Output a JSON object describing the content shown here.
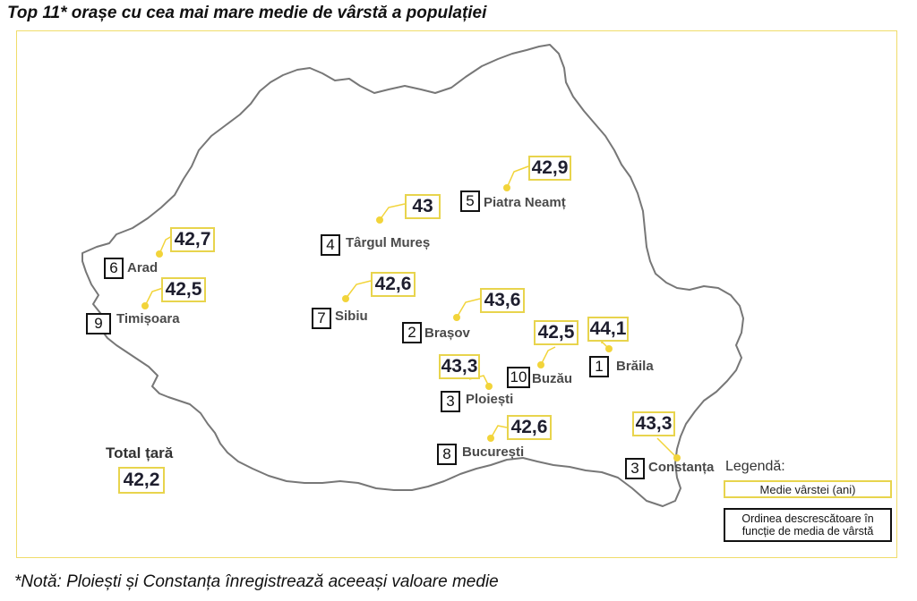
{
  "title": "Top 11* orașe cu cea mai mare medie de vârstă a populației",
  "note": "*Notă: Ploiești și Constanța înregistrează aceeași valoare medie",
  "colors": {
    "value_box": "#e8d44d",
    "rank_box": "#111111",
    "map_outline": "#777777",
    "marker": "#f2d43a"
  },
  "total": {
    "label": "Total țară",
    "value": "42,2"
  },
  "legend": {
    "title": "Legendă:",
    "value_item": "Medie vârstei (ani)",
    "rank_item_line1": "Ordinea descrescătoare în",
    "rank_item_line2": "funcție de media de vârstă"
  },
  "cities": [
    {
      "name": "Arad",
      "rank": "6",
      "value": "42,7"
    },
    {
      "name": "Timișoara",
      "rank": "9",
      "value": "42,5"
    },
    {
      "name": "Târgul Mureș",
      "rank": "4",
      "value": "43"
    },
    {
      "name": "Sibiu",
      "rank": "7",
      "value": "42,6"
    },
    {
      "name": "Piatra Neamț",
      "rank": "5",
      "value": "42,9"
    },
    {
      "name": "Brașov",
      "rank": "2",
      "value": "43,6"
    },
    {
      "name": "Buzău",
      "rank": "10",
      "value": "42,5"
    },
    {
      "name": "Brăila",
      "rank": "1",
      "value": "44,1"
    },
    {
      "name": "Ploiești",
      "rank": "3",
      "value": "43,3"
    },
    {
      "name": "București",
      "rank": "8",
      "value": "42,6"
    },
    {
      "name": "Constanța",
      "rank": "3",
      "value": "43,3"
    }
  ]
}
